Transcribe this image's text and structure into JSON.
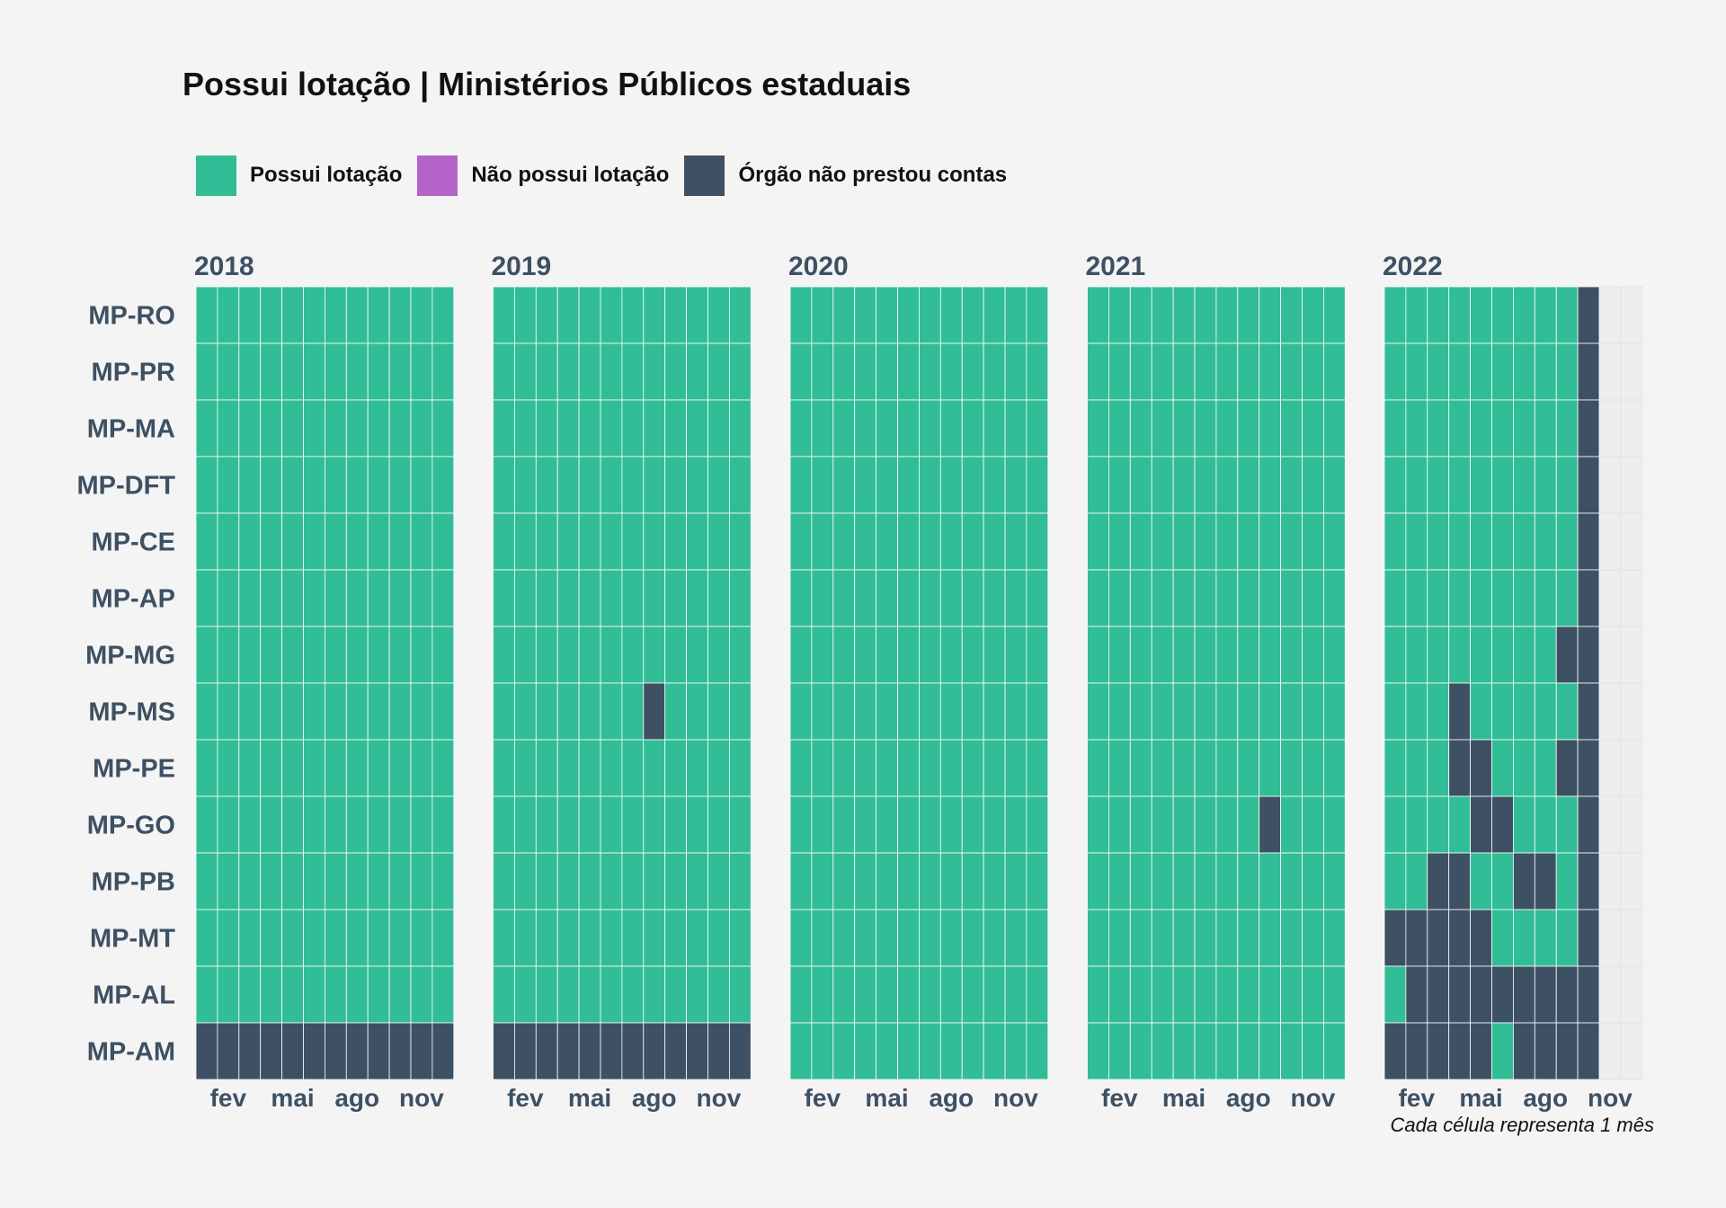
{
  "chart_data": {
    "type": "heatmap",
    "title": "Possui lotação | Ministérios Públicos estaduais",
    "caption": "Cada célula representa 1 mês",
    "legend": {
      "placement": "top-left",
      "items": [
        {
          "key": "S",
          "label": "Possui lotação",
          "color": "#31bd96"
        },
        {
          "key": "N",
          "label": "Não possui lotação",
          "color": "#b464c8"
        },
        {
          "key": "X",
          "label": "Órgão não prestou contas",
          "color": "#3e5063"
        }
      ]
    },
    "colors": {
      "empty_panel": "#eeeeee",
      "axis_text": "#3e5063",
      "background": "#f4f4f4"
    },
    "years": [
      "2018",
      "2019",
      "2020",
      "2021",
      "2022"
    ],
    "months": [
      1,
      2,
      3,
      4,
      5,
      6,
      7,
      8,
      9,
      10,
      11,
      12
    ],
    "x_tick_labels": [
      {
        "month": 2,
        "label": "fev"
      },
      {
        "month": 5,
        "label": "mai"
      },
      {
        "month": 8,
        "label": "ago"
      },
      {
        "month": 11,
        "label": "nov"
      }
    ],
    "organs": [
      "MP-RO",
      "MP-PR",
      "MP-MA",
      "MP-DFT",
      "MP-CE",
      "MP-AP",
      "MP-MG",
      "MP-MS",
      "MP-PE",
      "MP-GO",
      "MP-PB",
      "MP-MT",
      "MP-AL",
      "MP-AM"
    ],
    "status": {
      "2018": {
        "MP-RO": "SSSSSSSSSSSS",
        "MP-PR": "SSSSSSSSSSSS",
        "MP-MA": "SSSSSSSSSSSS",
        "MP-DFT": "SSSSSSSSSSSS",
        "MP-CE": "SSSSSSSSSSSS",
        "MP-AP": "SSSSSSSSSSSS",
        "MP-MG": "SSSSSSSSSSSS",
        "MP-MS": "SSSSSSSSSSSS",
        "MP-PE": "SSSSSSSSSSSS",
        "MP-GO": "SSSSSSSSSSSS",
        "MP-PB": "SSSSSSSSSSSS",
        "MP-MT": "SSSSSSSSSSSS",
        "MP-AL": "SSSSSSSSSSSS",
        "MP-AM": "XXXXXXXXXXXX"
      },
      "2019": {
        "MP-RO": "SSSSSSSSSSSS",
        "MP-PR": "SSSSSSSSSSSS",
        "MP-MA": "SSSSSSSSSSSS",
        "MP-DFT": "SSSSSSSSSSSS",
        "MP-CE": "SSSSSSSSSSSS",
        "MP-AP": "SSSSSSSSSSSS",
        "MP-MG": "SSSSSSSSSSSS",
        "MP-MS": "SSSSSSSXSSSS",
        "MP-PE": "SSSSSSSSSSSS",
        "MP-GO": "SSSSSSSSSSSS",
        "MP-PB": "SSSSSSSSSSSS",
        "MP-MT": "SSSSSSSSSSSS",
        "MP-AL": "SSSSSSSSSSSS",
        "MP-AM": "XXXXXXXXXXXX"
      },
      "2020": {
        "MP-RO": "SSSSSSSSSSSS",
        "MP-PR": "SSSSSSSSSSSS",
        "MP-MA": "SSSSSSSSSSSS",
        "MP-DFT": "SSSSSSSSSSSS",
        "MP-CE": "SSSSSSSSSSSS",
        "MP-AP": "SSSSSSSSSSSS",
        "MP-MG": "SSSSSSSSSSSS",
        "MP-MS": "SSSSSSSSSSSS",
        "MP-PE": "SSSSSSSSSSSS",
        "MP-GO": "SSSSSSSSSSSS",
        "MP-PB": "SSSSSSSSSSSS",
        "MP-MT": "SSSSSSSSSSSS",
        "MP-AL": "SSSSSSSSSSSS",
        "MP-AM": "SSSSSSSSSSSS"
      },
      "2021": {
        "MP-RO": "SSSSSSSSSSSS",
        "MP-PR": "SSSSSSSSSSSS",
        "MP-MA": "SSSSSSSSSSSS",
        "MP-DFT": "SSSSSSSSSSSS",
        "MP-CE": "SSSSSSSSSSSS",
        "MP-AP": "SSSSSSSSSSSS",
        "MP-MG": "SSSSSSSSSSSS",
        "MP-MS": "SSSSSSSSSSSS",
        "MP-PE": "SSSSSSSSSSSS",
        "MP-GO": "SSSSSSSSXSSS",
        "MP-PB": "SSSSSSSSSSSS",
        "MP-MT": "SSSSSSSSSSSS",
        "MP-AL": "SSSSSSSSSSSS",
        "MP-AM": "SSSSSSSSSSSS"
      },
      "2022": {
        "MP-RO": "SSSSSSSSSX",
        "MP-PR": "SSSSSSSSSX",
        "MP-MA": "SSSSSSSSSX",
        "MP-DFT": "SSSSSSSSSX",
        "MP-CE": "SSSSSSSSSX",
        "MP-AP": "SSSSSSSSSX",
        "MP-MG": "SSSSSSSSXX",
        "MP-MS": "SSSXSSSSSX",
        "MP-PE": "SSSXXSSSXX",
        "MP-GO": "SSSSXXSSSX",
        "MP-PB": "SSXXSSXXSX",
        "MP-MT": "XXXXXSSSSX",
        "MP-AL": "SXXXXXXXXX",
        "MP-AM": "XXXXXSXXXX"
      }
    }
  }
}
